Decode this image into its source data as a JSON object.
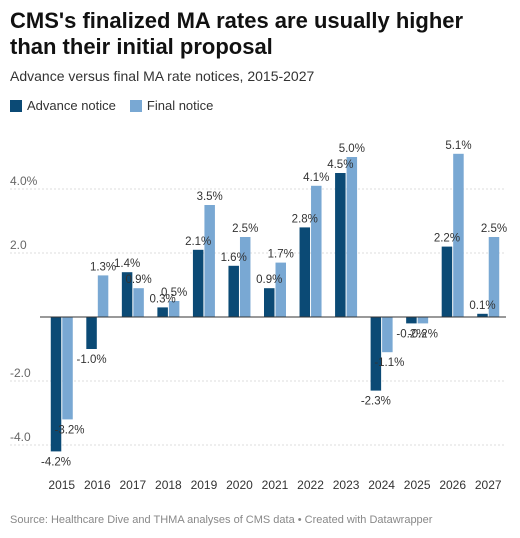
{
  "title": "CMS's finalized MA rates are usually higher than their initial proposal",
  "subtitle": "Advance versus final MA rate notices, 2015-2027",
  "source": "Source: Healthcare Dive and THMA analyses of CMS data • Created with Datawrapper",
  "colors": {
    "advance": "#0b4a75",
    "final": "#79a8d3",
    "grid": "#dddddd",
    "axis": "#333333"
  },
  "chart_data": {
    "type": "bar",
    "categories": [
      "2015",
      "2016",
      "2017",
      "2018",
      "2019",
      "2020",
      "2021",
      "2022",
      "2023",
      "2024",
      "2025",
      "2026",
      "2027"
    ],
    "series": [
      {
        "name": "Advance notice",
        "values": [
          -4.2,
          -1.0,
          1.4,
          0.3,
          2.1,
          1.6,
          0.9,
          2.8,
          4.5,
          -2.3,
          -0.2,
          2.2,
          0.1
        ],
        "labels": [
          "-4.2%",
          "-1.0%",
          "1.4%",
          "0.3%",
          "2.1%",
          "1.6%",
          "0.9%",
          "2.8%",
          "4.5%",
          "-2.3%",
          "-0.2%",
          "2.2%",
          "0.1%"
        ]
      },
      {
        "name": "Final notice",
        "values": [
          -3.2,
          1.3,
          0.9,
          0.5,
          3.5,
          2.5,
          1.7,
          4.1,
          5.0,
          -1.1,
          -0.2,
          5.1,
          2.5
        ],
        "labels": [
          "-3.2%",
          "1.3%",
          "0.9%",
          "0.5%",
          "3.5%",
          "2.5%",
          "1.7%",
          "4.1%",
          "5.0%",
          "-1.1%",
          "-0.2%",
          "5.1%",
          "2.5%"
        ]
      }
    ],
    "ylim": [
      -4.2,
      5.1
    ],
    "yticks": [
      4,
      2,
      -2,
      -4
    ],
    "ytick_labels": [
      "4.0%",
      "2.0",
      "-2.0",
      "-4.0"
    ],
    "legend_position": "top-left",
    "grid": true
  }
}
